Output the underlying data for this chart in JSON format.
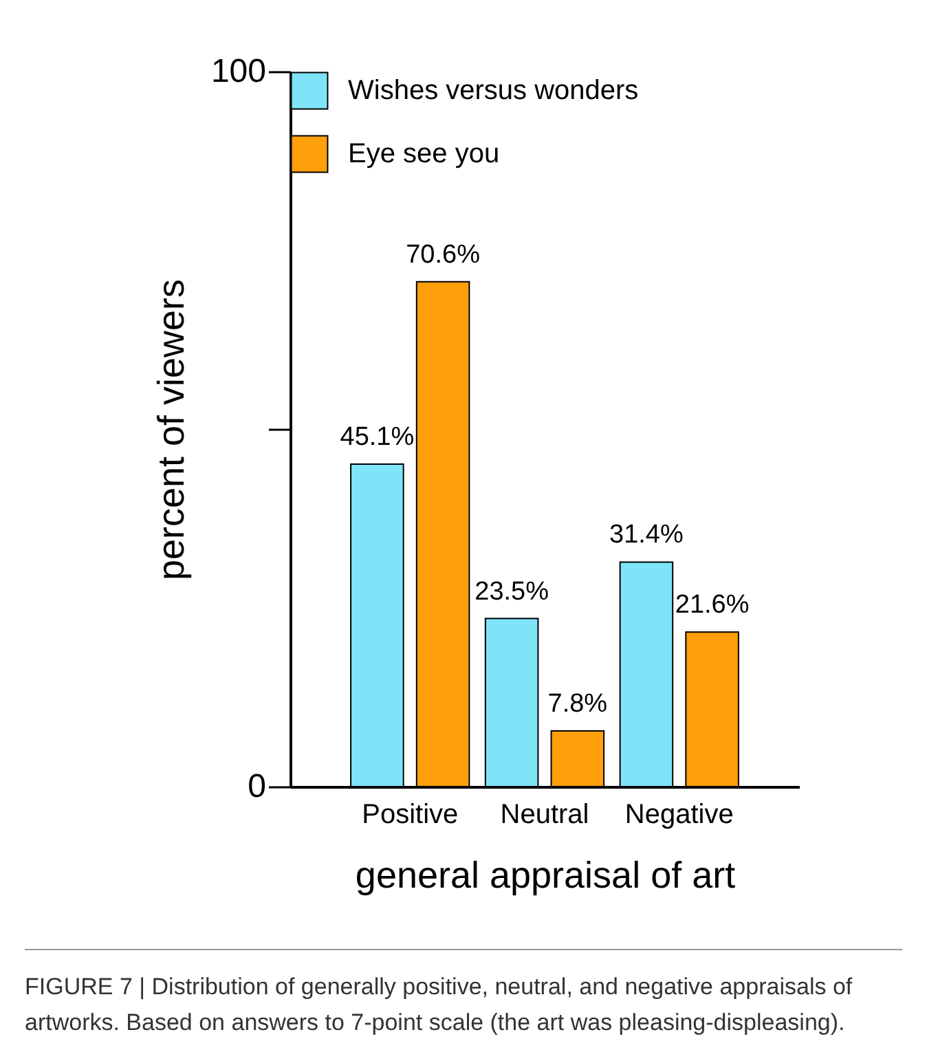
{
  "chart_data": {
    "type": "bar",
    "categories": [
      "Positive",
      "Neutral",
      "Negative"
    ],
    "series": [
      {
        "name": "Wishes versus wonders",
        "color": "#7fe4f8",
        "values": [
          45.1,
          23.5,
          31.4
        ],
        "value_labels": [
          "45.1%",
          "23.5%",
          "31.4%"
        ]
      },
      {
        "name": "Eye see you",
        "color": "#ff9f0a",
        "values": [
          70.6,
          7.8,
          21.6
        ],
        "value_labels": [
          "70.6%",
          "7.8%",
          "21.6%"
        ]
      }
    ],
    "xlabel": "general appraisal of art",
    "ylabel": "percent of viewers",
    "ylim": [
      0,
      100
    ],
    "yticks": [
      0,
      {
        "value": 50,
        "label": null
      },
      100
    ],
    "legend": "top left",
    "annotations": [
      "FIGURE 7 | Distribution of generally positive, neutral, and negative appraisals of artworks. Based on answers to 7-point scale (the art was pleasing-displeasing)."
    ]
  }
}
